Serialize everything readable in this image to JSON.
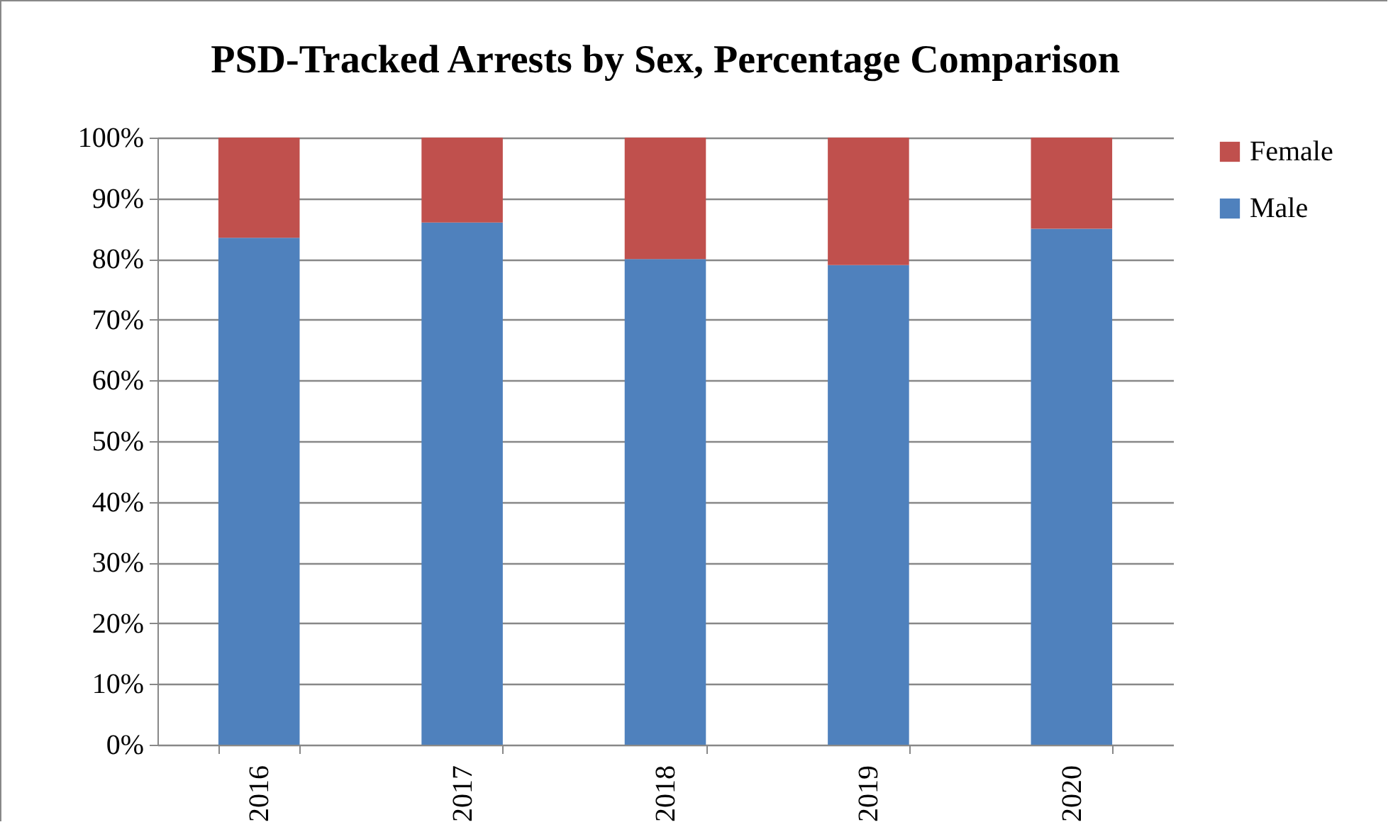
{
  "chart_data": {
    "type": "bar",
    "title": "PSD-Tracked Arrests by Sex, Percentage Comparison",
    "categories": [
      "2016",
      "2017",
      "2018",
      "2019",
      "2020"
    ],
    "stacked": true,
    "series": [
      {
        "name": "Male",
        "color": "#4f81bd",
        "values": [
          83.5,
          86,
          80,
          79,
          85
        ]
      },
      {
        "name": "Female",
        "color": "#c0504d",
        "values": [
          16.5,
          14,
          20,
          21,
          15
        ]
      }
    ],
    "ylim": [
      0,
      100
    ],
    "yticks": [
      {
        "value": 0,
        "label": "0%"
      },
      {
        "value": 10,
        "label": "10%"
      },
      {
        "value": 20,
        "label": "20%"
      },
      {
        "value": 30,
        "label": "30%"
      },
      {
        "value": 40,
        "label": "40%"
      },
      {
        "value": 50,
        "label": "50%"
      },
      {
        "value": 60,
        "label": "60%"
      },
      {
        "value": 70,
        "label": "70%"
      },
      {
        "value": 80,
        "label": "80%"
      },
      {
        "value": 90,
        "label": "90%"
      },
      {
        "value": 100,
        "label": "100%"
      }
    ],
    "grid": "y",
    "legend": "right"
  }
}
